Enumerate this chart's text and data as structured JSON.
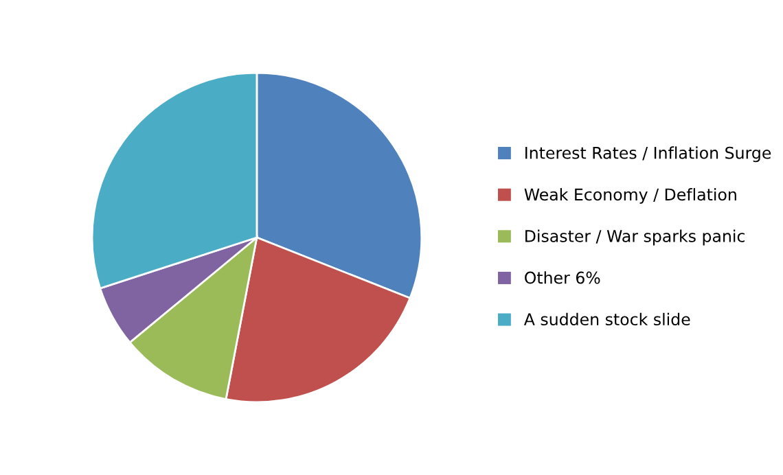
{
  "chart_data": {
    "type": "pie",
    "categories": [
      "Interest Rates / Inflation Surge",
      "Weak Economy / Deflation",
      "Disaster / War sparks panic",
      "Other 6%",
      "A sudden stock slide"
    ],
    "values": [
      31,
      22,
      11,
      6,
      30
    ],
    "colors": [
      "#4f81bd",
      "#c0504d",
      "#9bbb59",
      "#8064a2",
      "#4bacc6"
    ],
    "legend": "right"
  }
}
